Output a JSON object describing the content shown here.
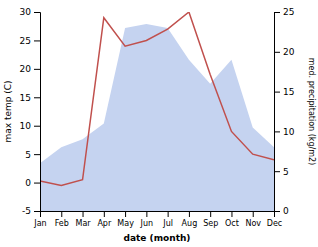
{
  "chart_data": {
    "type": "line",
    "categories": [
      "Jan",
      "Feb",
      "Mar",
      "Apr",
      "May",
      "Jun",
      "Jul",
      "Aug",
      "Sep",
      "Oct",
      "Nov",
      "Dec"
    ],
    "series": [
      {
        "type": "area",
        "color": "#c5d3f0",
        "axis": "y2",
        "values": [
          6.0,
          8.0,
          9.0,
          11.0,
          23.0,
          23.5,
          23.0,
          19.0,
          16.0,
          19.0,
          10.5,
          8.0
        ]
      },
      {
        "type": "line",
        "color": "#c0504d",
        "values": [
          0.3,
          -0.5,
          0.5,
          29.0,
          24.0,
          25.0,
          27.0,
          30.0,
          19.0,
          9.0,
          5.0,
          4.0
        ]
      }
    ],
    "xlabel": "date (month)",
    "ylabel": "max temp (C)",
    "y2label": "med. precipitation (kg/m2)",
    "ylim": [
      -5,
      30
    ],
    "yticks": [
      -5,
      0,
      5,
      10,
      15,
      20,
      25,
      30
    ],
    "y2lim": [
      0,
      25
    ],
    "y2ticks": [
      0,
      5,
      10,
      15,
      20,
      25
    ],
    "grid": false
  }
}
